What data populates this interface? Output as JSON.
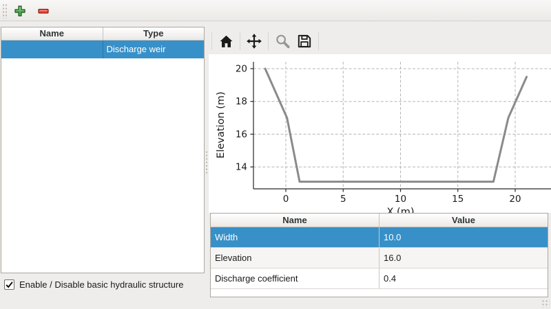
{
  "colors": {
    "selection": "#3890c8",
    "chart_line": "#8a8a8a",
    "toolbar_plus_green": "#58a55c",
    "toolbar_minus_red": "#ee4537"
  },
  "main_toolbar": {
    "icons": [
      "plus-icon",
      "minus-icon"
    ]
  },
  "left_panel": {
    "columns": [
      "Name",
      "Type"
    ],
    "rows": [
      {
        "name": "",
        "type": "Discharge weir",
        "selected": true
      }
    ]
  },
  "checkbox": {
    "label": "Enable / Disable basic hydraulic structure",
    "checked": true
  },
  "plot_toolbar": {
    "icons": [
      "home-icon",
      "pan-icon",
      "magnifier-icon",
      "save-icon"
    ]
  },
  "chart_data": {
    "type": "line",
    "title": "",
    "xlabel": "X (m)",
    "ylabel": "Elevation (m)",
    "points": [
      [
        -1.8,
        20.0
      ],
      [
        0.1,
        17.0
      ],
      [
        1.2,
        13.1
      ],
      [
        18.1,
        13.1
      ],
      [
        19.4,
        17.0
      ],
      [
        21.0,
        19.5
      ]
    ],
    "xticks": [
      0,
      5,
      10,
      15,
      20
    ],
    "yticks": [
      14,
      16,
      18,
      20
    ],
    "xlim": [
      -2.8,
      23.1
    ],
    "ylim": [
      12.7,
      20.4
    ],
    "grid": true,
    "grid_style": "dashed",
    "legend": false,
    "line_color": "#8a8a8a"
  },
  "properties_table": {
    "columns": [
      "Name",
      "Value"
    ],
    "rows": [
      {
        "name": "Width",
        "value": "10.0",
        "selected": true
      },
      {
        "name": "Elevation",
        "value": "16.0",
        "selected": false
      },
      {
        "name": "Discharge coefficient",
        "value": "0.4",
        "selected": false
      }
    ]
  }
}
